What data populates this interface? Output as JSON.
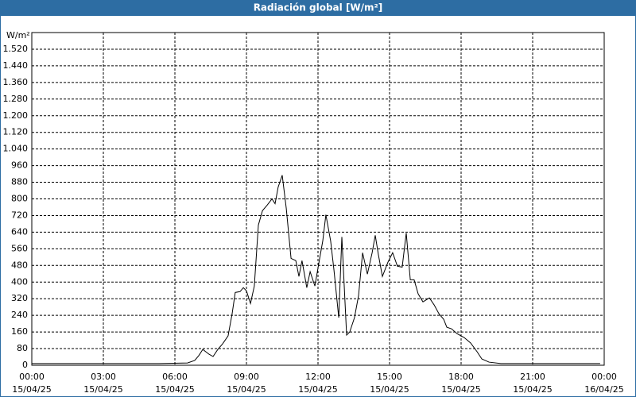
{
  "chart_data": {
    "type": "line",
    "title": "Radiación global [W/m²]",
    "ylabel": "W/m²",
    "x": [
      0,
      5.33,
      6.53,
      6.83,
      7.0,
      7.17,
      7.43,
      7.6,
      7.8,
      8.0,
      8.23,
      8.4,
      8.53,
      8.73,
      8.87,
      9.0,
      9.17,
      9.33,
      9.5,
      9.67,
      9.87,
      10.07,
      10.2,
      10.33,
      10.5,
      10.67,
      10.87,
      11.07,
      11.2,
      11.33,
      11.53,
      11.67,
      11.87,
      12.07,
      12.2,
      12.33,
      12.53,
      12.67,
      12.87,
      13.0,
      13.2,
      13.33,
      13.53,
      13.7,
      13.87,
      14.07,
      14.27,
      14.4,
      14.53,
      14.7,
      14.93,
      15.13,
      15.33,
      15.53,
      15.7,
      15.87,
      16.03,
      16.2,
      16.4,
      16.67,
      16.87,
      17.07,
      17.27,
      17.4,
      17.6,
      17.83,
      18.13,
      18.4,
      18.67,
      18.87,
      19.17,
      19.67,
      23.83
    ],
    "series": [
      {
        "name": "Radiación global",
        "color": "#000000",
        "values": [
          8,
          8,
          11,
          23,
          46,
          76,
          53,
          42,
          76,
          103,
          141,
          248,
          350,
          354,
          373,
          358,
          297,
          381,
          674,
          743,
          770,
          800,
          777,
          857,
          914,
          754,
          514,
          503,
          427,
          503,
          373,
          450,
          381,
          514,
          598,
          724,
          598,
          457,
          229,
          617,
          145,
          160,
          229,
          335,
          541,
          438,
          541,
          625,
          533,
          427,
          495,
          541,
          476,
          472,
          636,
          411,
          411,
          343,
          305,
          324,
          290,
          248,
          221,
          183,
          175,
          152,
          133,
          107,
          65,
          30,
          15,
          8,
          8
        ]
      }
    ],
    "xlim": [
      0,
      24
    ],
    "xticks": [
      {
        "value": 0,
        "label": "00:00",
        "date": "15/04/25"
      },
      {
        "value": 3,
        "label": "03:00",
        "date": "15/04/25"
      },
      {
        "value": 6,
        "label": "06:00",
        "date": "15/04/25"
      },
      {
        "value": 9,
        "label": "09:00",
        "date": "15/04/25"
      },
      {
        "value": 12,
        "label": "12:00",
        "date": "15/04/25"
      },
      {
        "value": 15,
        "label": "15:00",
        "date": "15/04/25"
      },
      {
        "value": 18,
        "label": "18:00",
        "date": "15/04/25"
      },
      {
        "value": 21,
        "label": "21:00",
        "date": "15/04/25"
      },
      {
        "value": 24,
        "label": "00:00",
        "date": "16/04/25"
      }
    ],
    "ylim": [
      0,
      1600
    ],
    "yticks": [
      0,
      80,
      160,
      240,
      320,
      400,
      480,
      560,
      640,
      720,
      800,
      880,
      960,
      {
        "value": 1040,
        "label": "1.040"
      },
      {
        "value": 1120,
        "label": "1.120"
      },
      {
        "value": 1200,
        "label": "1.200"
      },
      {
        "value": 1280,
        "label": "1.280"
      },
      {
        "value": 1360,
        "label": "1.360"
      },
      {
        "value": 1440,
        "label": "1.440"
      },
      {
        "value": 1520,
        "label": "1.520"
      }
    ],
    "grid": true
  }
}
